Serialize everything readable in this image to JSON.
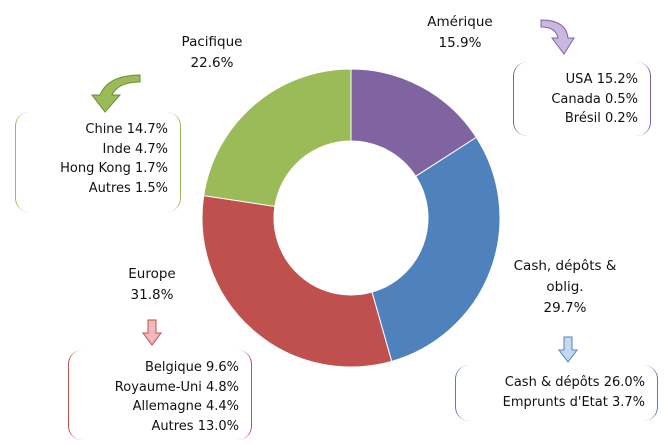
{
  "chart_data": {
    "type": "donut",
    "categories": [
      "Amérique",
      "Cash, dépôts & oblig.",
      "Europe",
      "Pacifique"
    ],
    "values": [
      15.9,
      29.7,
      31.8,
      22.6
    ],
    "value_labels": [
      "15.9%",
      "29.7%",
      "31.8%",
      "22.6%"
    ],
    "colors": [
      "#8064a2",
      "#4f81bd",
      "#c0504d",
      "#9bbb59"
    ],
    "breakdowns": [
      {
        "names": [
          "USA",
          "Canada",
          "Brésil"
        ],
        "values": [
          15.2,
          0.5,
          0.2
        ],
        "value_labels": [
          "15.2%",
          "0.5%",
          "0.2%"
        ]
      },
      {
        "names": [
          "Cash & dépôts",
          "Emprunts d'Etat"
        ],
        "values": [
          26.0,
          3.7
        ],
        "value_labels": [
          "26.0%",
          "3.7%"
        ]
      },
      {
        "names": [
          "Belgique",
          "Royaume-Uni",
          "Allemagne",
          "Autres"
        ],
        "values": [
          9.6,
          4.8,
          4.4,
          13.0
        ],
        "value_labels": [
          "9.6%",
          "4.8%",
          "4.4%",
          "13.0%"
        ]
      },
      {
        "names": [
          "Chine",
          "Inde",
          "Hong Kong",
          "Autres"
        ],
        "values": [
          14.7,
          4.7,
          1.7,
          1.5
        ],
        "value_labels": [
          "14.7%",
          "4.7%",
          "1.7%",
          "1.5%"
        ]
      }
    ]
  }
}
